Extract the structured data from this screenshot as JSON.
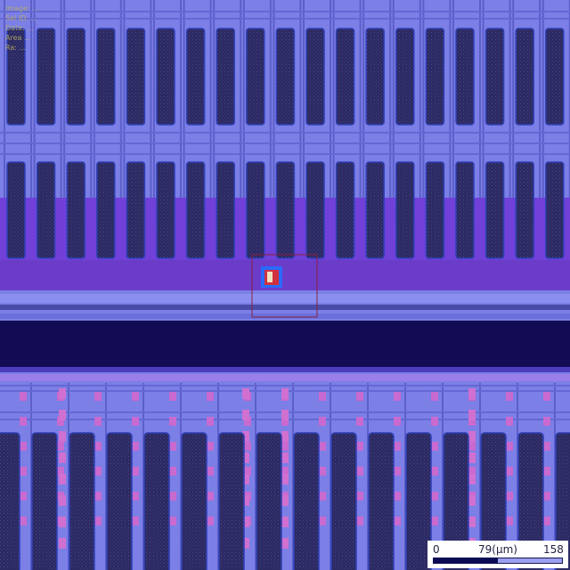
{
  "overlay": {
    "line1": "Image: ...",
    "line2": "Sel ID: ...",
    "line3": "Date: ...",
    "line4": "Area ...",
    "line5": "Ra: ..."
  },
  "scale": {
    "start_label": "0",
    "mid_label": "79(µm)",
    "end_label": "158"
  },
  "colors": {
    "background": "#7b7fe6",
    "cell_dark": "#2c2a63",
    "purple_band": "#7040d8",
    "dark_rail": "#120c55",
    "pink_marks": "#d070d0"
  }
}
